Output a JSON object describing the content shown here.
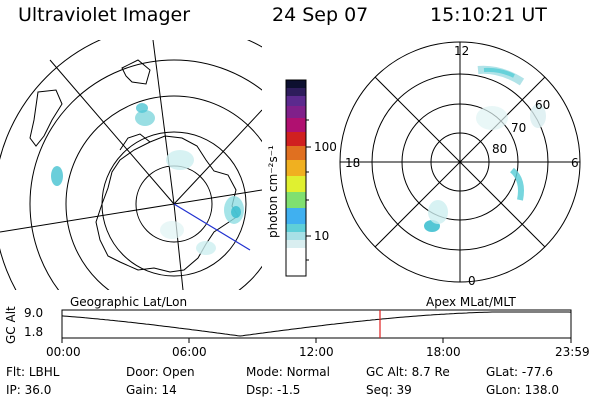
{
  "header": {
    "instrument": "Ultraviolet Imager",
    "date": "24 Sep 07",
    "time": "15:10:21 UT"
  },
  "colorbar": {
    "unit_label": "photon cm⁻²s⁻¹",
    "ticks": [
      "100",
      "10"
    ],
    "colors": [
      "#ffffff",
      "#d9eef0",
      "#a8e0e6",
      "#5fcfd8",
      "#40b0f0",
      "#80e070",
      "#e0f030",
      "#f0b020",
      "#e07020",
      "#d02020",
      "#b01070",
      "#80208a",
      "#5c2a8e",
      "#2e1d5c",
      "#0d1030"
    ]
  },
  "left_panel": {
    "title": "Geographic Lat/Lon"
  },
  "right_panel": {
    "title": "Apex MLat/MLT",
    "mlt_labels": [
      "12",
      "18",
      "6",
      "0"
    ],
    "mlat_labels": [
      "60",
      "70",
      "80"
    ]
  },
  "timeline": {
    "axis_title": "GC Alt",
    "y_ticks": [
      "9.0",
      "1.8"
    ],
    "x_ticks": [
      "00:00",
      "06:00",
      "12:00",
      "18:00",
      "23:59"
    ],
    "marker_color": "#e02020"
  },
  "status": {
    "row1": [
      {
        "label": "Flt:",
        "value": "LBHL"
      },
      {
        "label": "Door:",
        "value": "Open"
      },
      {
        "label": "Mode:",
        "value": "Normal"
      },
      {
        "label": "GC Alt:",
        "value": "8.7 Re"
      },
      {
        "label": "GLat:",
        "value": "-77.6"
      }
    ],
    "row2": [
      {
        "label": "IP:",
        "value": "36.0"
      },
      {
        "label": "Gain:",
        "value": "14"
      },
      {
        "label": "Dsp:",
        "value": "-1.5"
      },
      {
        "label": "Seq:",
        "value": "39"
      },
      {
        "label": "GLon:",
        "value": "138.0"
      }
    ]
  }
}
